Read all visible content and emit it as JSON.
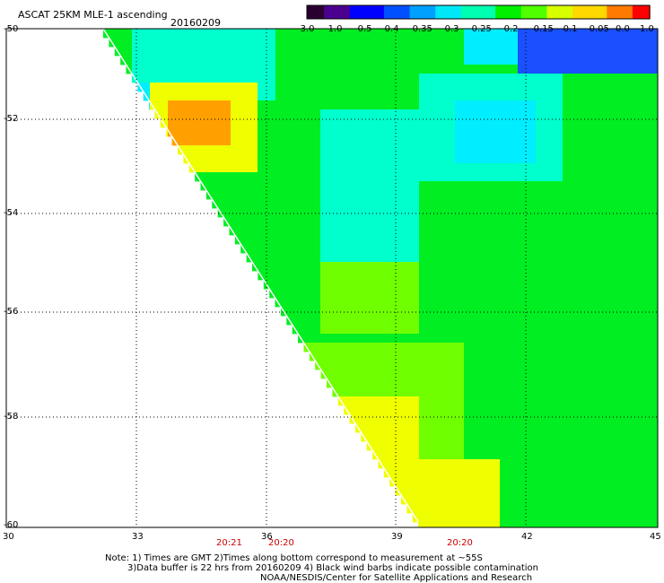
{
  "header": {
    "title": "ASCAT 25KM MLE-1 ascending",
    "date": "20160209"
  },
  "colorbar": {
    "labels": [
      "-3.0",
      "-1.0",
      "-0.5",
      "-0.4",
      "-0.35",
      "-0.3",
      "-0.25",
      "-0.2",
      "-0.15",
      "-0.1",
      "-0.05",
      "0.0",
      "1.0"
    ],
    "colors": [
      "#2a0030",
      "#4b0090",
      "#0000ff",
      "#0050ff",
      "#00a0ff",
      "#00e8f8",
      "#00ffb0",
      "#00f000",
      "#50ff00",
      "#d8ff00",
      "#ffd800",
      "#ff7a00",
      "#ff0000"
    ]
  },
  "map": {
    "lat_labels": [
      "-50",
      "-52",
      "-54",
      "-56",
      "-58",
      "-60"
    ],
    "lon_labels": [
      "30",
      "33",
      "36",
      "39",
      "42",
      "45"
    ],
    "time_labels": [
      "20:21",
      "20:20",
      "20:20"
    ],
    "time_color": "#cc0000",
    "palette": {
      "blue": "#1a50ff",
      "cyan": "#00eeff",
      "aqua": "#00ffcc",
      "green": "#00ee22",
      "lime": "#70ff00",
      "yellow": "#f0ff00",
      "orange": "#ffa000"
    }
  },
  "notes": [
    "Note: 1) Times are GMT 2)Times along bottom correspond to measurement at ~55S",
    "3)Data buffer is 22 hrs from 20160209 4) Black wind barbs indicate possible contamination",
    "NOAA/NESDIS/Center for Satellite Applications and Research"
  ]
}
